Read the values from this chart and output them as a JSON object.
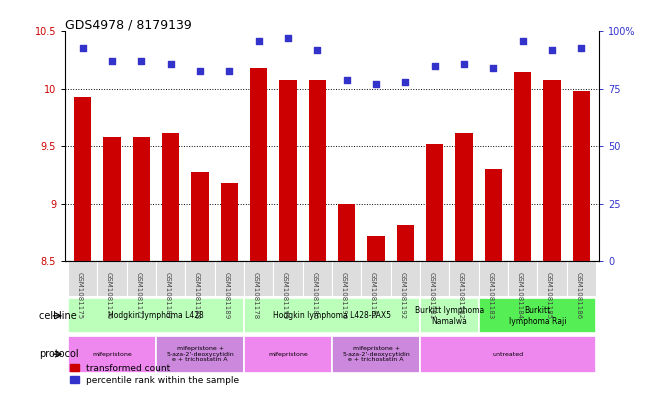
{
  "title": "GDS4978 / 8179139",
  "samples": [
    "GSM1081175",
    "GSM1081176",
    "GSM1081177",
    "GSM1081187",
    "GSM1081188",
    "GSM1081189",
    "GSM1081178",
    "GSM1081179",
    "GSM1081180",
    "GSM1081190",
    "GSM1081191",
    "GSM1081192",
    "GSM1081181",
    "GSM1081182",
    "GSM1081183",
    "GSM1081184",
    "GSM1081185",
    "GSM1081186"
  ],
  "red_values": [
    9.93,
    9.58,
    9.58,
    9.62,
    9.28,
    9.18,
    10.18,
    10.08,
    10.08,
    9.0,
    8.72,
    8.82,
    9.52,
    9.62,
    9.3,
    10.15,
    10.08,
    9.98
  ],
  "blue_values": [
    93,
    87,
    87,
    86,
    83,
    83,
    96,
    97,
    92,
    79,
    77,
    78,
    85,
    86,
    84,
    96,
    92,
    93
  ],
  "ylim_left": [
    8.5,
    10.5
  ],
  "ylim_right": [
    0,
    100
  ],
  "yticks_left": [
    8.5,
    9.0,
    9.5,
    10.0,
    10.5
  ],
  "ytick_labels_left": [
    "8.5",
    "9",
    "9.5",
    "10",
    "10.5"
  ],
  "yticks_right": [
    0,
    25,
    50,
    75,
    100
  ],
  "ytick_labels_right": [
    "0",
    "25",
    "50",
    "75",
    "100%"
  ],
  "grid_values": [
    9.0,
    9.5,
    10.0
  ],
  "bar_color": "#cc0000",
  "dot_color": "#3333cc",
  "cell_line_groups": [
    {
      "label": "Hodgkin lymphoma L428",
      "start": 0,
      "end": 6,
      "color": "#bbffbb"
    },
    {
      "label": "Hodgkin lymphoma L428-PAX5",
      "start": 6,
      "end": 12,
      "color": "#bbffbb"
    },
    {
      "label": "Burkitt lymphoma\nNamalwa",
      "start": 12,
      "end": 14,
      "color": "#bbffbb"
    },
    {
      "label": "Burkitt\nlymphoma Raji",
      "start": 14,
      "end": 18,
      "color": "#55ee55"
    }
  ],
  "protocol_groups": [
    {
      "label": "mifepristone",
      "start": 0,
      "end": 3,
      "color": "#ee88ee"
    },
    {
      "label": "mifepristone +\n5-aza-2'-deoxycytidin\ne + trichostatin A",
      "start": 3,
      "end": 6,
      "color": "#cc88dd"
    },
    {
      "label": "mifepristone",
      "start": 6,
      "end": 9,
      "color": "#ee88ee"
    },
    {
      "label": "mifepristone +\n5-aza-2'-deoxycytidin\ne + trichostatin A",
      "start": 9,
      "end": 12,
      "color": "#cc88dd"
    },
    {
      "label": "untreated",
      "start": 12,
      "end": 18,
      "color": "#ee88ee"
    }
  ],
  "legend_red": "transformed count",
  "legend_blue": "percentile rank within the sample",
  "cell_line_label": "cell line",
  "protocol_label": "protocol",
  "sample_label_color": "#444444",
  "xlim": [
    -0.6,
    17.6
  ]
}
